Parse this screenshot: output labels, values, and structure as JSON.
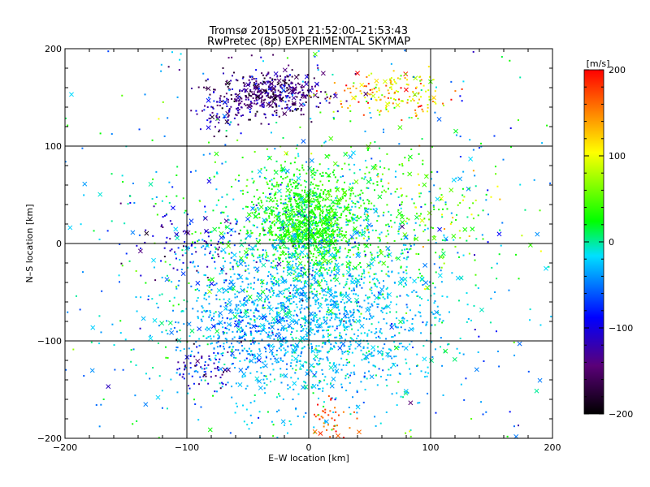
{
  "chart_data": {
    "type": "scatter",
    "title": "Tromsø 20150501 21:52:00–21:53:43",
    "subtitle": "RwPretec (8p) EXPERIMENTAL SKYMAP",
    "xlabel": "E–W location [km]",
    "ylabel": "N–S location [km]",
    "xlim": [
      -200,
      200
    ],
    "ylim": [
      -200,
      200
    ],
    "x_ticks": [
      "−200",
      "−100",
      "0",
      "100",
      "200"
    ],
    "y_ticks": [
      "200",
      "100",
      "0",
      "−100",
      "−200"
    ],
    "grid": true,
    "colorbar": {
      "unit": "[m/s]",
      "range": [
        -200,
        200
      ],
      "ticks": [
        "200",
        "100",
        "0",
        "−100",
        "−200"
      ],
      "colors": [
        "#000000",
        "#5a0078",
        "#0000ff",
        "#00e0ff",
        "#00ff00",
        "#ffff00",
        "#ff0000"
      ]
    },
    "clusters": [
      {
        "x": -30,
        "y": 155,
        "sx": 22,
        "sy": 12,
        "v": -150,
        "sv": 25,
        "n": 420
      },
      {
        "x": -70,
        "y": 135,
        "sx": 12,
        "sy": 12,
        "v": -140,
        "sv": 25,
        "n": 80
      },
      {
        "x": 70,
        "y": 155,
        "sx": 25,
        "sy": 12,
        "v": 120,
        "sv": 50,
        "n": 170
      },
      {
        "x": 0,
        "y": 20,
        "sx": 20,
        "sy": 22,
        "v": 10,
        "sv": 15,
        "n": 950
      },
      {
        "x": 10,
        "y": 20,
        "sx": 55,
        "sy": 40,
        "v": 0,
        "sv": 25,
        "n": 650
      },
      {
        "x": 0,
        "y": -75,
        "sx": 55,
        "sy": 45,
        "v": -35,
        "sv": 15,
        "n": 1800
      },
      {
        "x": -90,
        "y": 0,
        "sx": 30,
        "sy": 18,
        "v": -110,
        "sv": 30,
        "n": 110
      },
      {
        "x": -85,
        "y": -128,
        "sx": 12,
        "sy": 12,
        "v": -120,
        "sv": 30,
        "n": 70
      },
      {
        "x": -50,
        "y": -90,
        "sx": 20,
        "sy": 18,
        "v": -70,
        "sv": 20,
        "n": 120
      },
      {
        "x": 0,
        "y": 0,
        "sx": 180,
        "sy": 180,
        "v": -40,
        "sv": 45,
        "n": 900
      },
      {
        "x": 20,
        "y": -180,
        "sx": 10,
        "sy": 12,
        "v": 170,
        "sv": 20,
        "n": 40
      },
      {
        "x": 90,
        "y": 30,
        "sx": 40,
        "sy": 40,
        "v": 40,
        "sv": 50,
        "n": 120
      }
    ]
  }
}
